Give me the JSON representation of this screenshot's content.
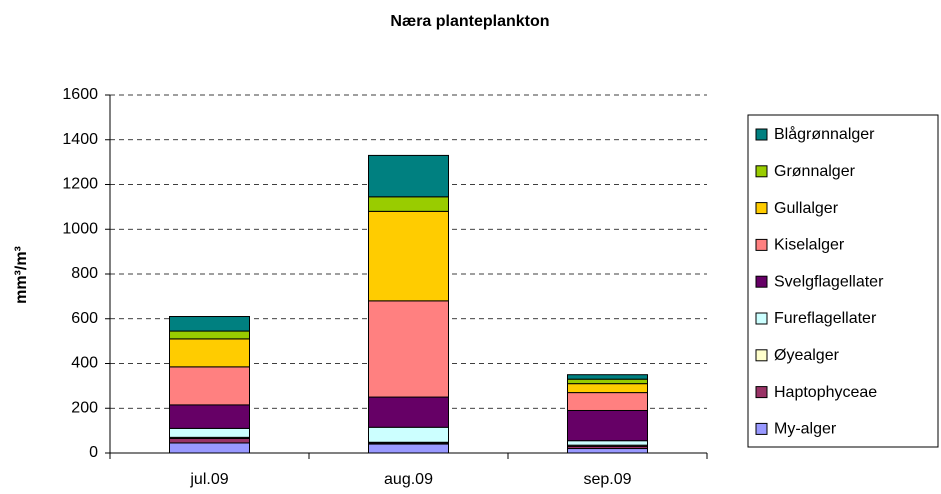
{
  "chart_data": {
    "type": "stacked_bar",
    "title": "Næra planteplankton",
    "y_label": "mm³/m³",
    "categories": [
      "jul.09",
      "aug.09",
      "sep.09"
    ],
    "series": [
      {
        "name": "My-alger",
        "color": "#9999ff",
        "values": [
          45,
          40,
          20
        ]
      },
      {
        "name": "Haptophyceae",
        "color": "#993366",
        "values": [
          20,
          5,
          10
        ]
      },
      {
        "name": "Øyealger",
        "color": "#ffffcc",
        "values": [
          5,
          3,
          5
        ]
      },
      {
        "name": "Fureflagellater",
        "color": "#ccffff",
        "values": [
          40,
          67,
          20
        ]
      },
      {
        "name": "Svelgflagellater",
        "color": "#660066",
        "values": [
          105,
          135,
          135
        ]
      },
      {
        "name": "Kiselalger",
        "color": "#ff8080",
        "values": [
          170,
          430,
          80
        ]
      },
      {
        "name": "Gullalger",
        "color": "#ffcc00",
        "values": [
          125,
          400,
          40
        ]
      },
      {
        "name": "Grønnalger",
        "color": "#99cc00",
        "values": [
          35,
          65,
          20
        ]
      },
      {
        "name": "Blågrønnalger",
        "color": "#008080",
        "values": [
          65,
          185,
          20
        ]
      }
    ],
    "ylim": [
      0,
      1600
    ],
    "yticks": [
      0,
      200,
      400,
      600,
      800,
      1000,
      1200,
      1400,
      1600
    ],
    "grid": true,
    "legend": "right"
  }
}
